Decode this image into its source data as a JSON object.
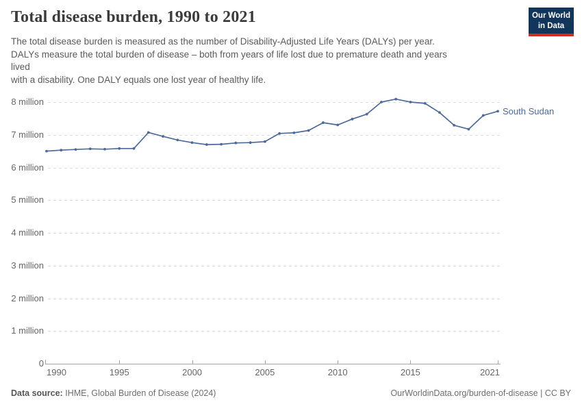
{
  "header": {
    "title": "Total disease burden, 1990 to 2021",
    "subtitle_lines": [
      "The total disease burden is measured as the number of Disability-Adjusted Life Years (DALYs) per year.",
      "DALYs measure the total burden of disease – both from years of life lost due to premature death and years",
      "lived",
      "with a disability. One DALY equals one lost year of healthy life."
    ]
  },
  "logo": {
    "line1": "Our World",
    "line2": "in Data",
    "bg_color": "#12355b",
    "accent_color": "#cf2d20"
  },
  "chart_data": {
    "type": "line",
    "title": "Total disease burden, 1990 to 2021",
    "unit": "DALYs per year",
    "x": [
      1990,
      1991,
      1992,
      1993,
      1994,
      1995,
      1996,
      1997,
      1998,
      1999,
      2000,
      2001,
      2002,
      2003,
      2004,
      2005,
      2006,
      2007,
      2008,
      2009,
      2010,
      2011,
      2012,
      2013,
      2014,
      2015,
      2016,
      2017,
      2018,
      2019,
      2020,
      2021
    ],
    "series": [
      {
        "name": "South Sudan",
        "color": "#4c6a9c",
        "values_millions": [
          6.5,
          6.53,
          6.55,
          6.57,
          6.56,
          6.58,
          6.58,
          7.07,
          6.95,
          6.84,
          6.76,
          6.7,
          6.71,
          6.75,
          6.76,
          6.79,
          7.04,
          7.06,
          7.13,
          7.37,
          7.3,
          7.48,
          7.63,
          8.0,
          8.09,
          8.0,
          7.96,
          7.68,
          7.29,
          7.17,
          7.59,
          7.72
        ]
      }
    ],
    "yticks": [
      "0",
      "1 million",
      "2 million",
      "3 million",
      "4 million",
      "5 million",
      "6 million",
      "7 million",
      "8 million"
    ],
    "xticks": [
      "1990",
      "1995",
      "2000",
      "2005",
      "2010",
      "2015",
      "2021"
    ],
    "ylim_millions": [
      0,
      8
    ],
    "grid": "horizontal-dashed",
    "legend": "end-of-line-label"
  },
  "footer": {
    "source_label": "Data source:",
    "source_value": "IHME, Global Burden of Disease (2024)",
    "credit": "OurWorldinData.org/burden-of-disease | CC BY"
  },
  "colors": {
    "line": "#4c6a9c",
    "grid": "#dcdcdc",
    "axis": "#a5a5a5",
    "tick_label": "#666666",
    "title": "#3b3b3b",
    "subtitle": "#5a5a5a",
    "footer": "#6e6e6e"
  }
}
